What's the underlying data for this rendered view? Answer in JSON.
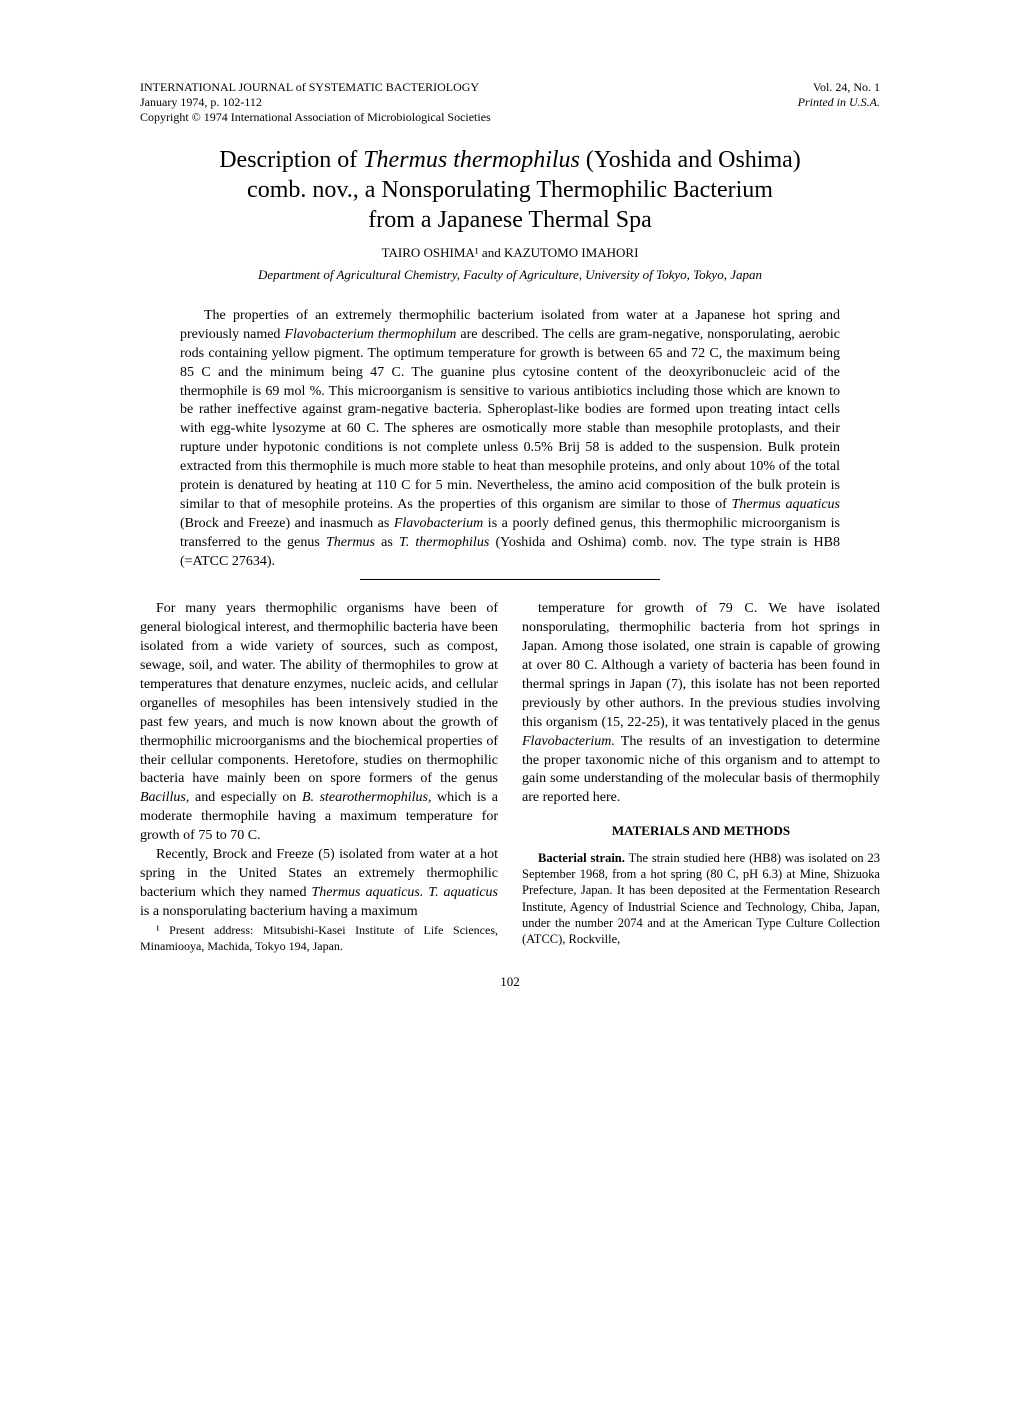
{
  "header": {
    "journal": "INTERNATIONAL JOURNAL of SYSTEMATIC BACTERIOLOGY",
    "issue_line": "January 1974, p. 102-112",
    "copyright": "Copyright © 1974 International Association of Microbiological Societies",
    "volume": "Vol. 24, No. 1",
    "printed_in": "Printed in U.S.A."
  },
  "title": {
    "line1a": "Description of ",
    "line1b": "Thermus thermophilus",
    "line1c": " (Yoshida and Oshima)",
    "line2": "comb. nov., a Nonsporulating Thermophilic Bacterium",
    "line3": "from a Japanese Thermal Spa"
  },
  "authors": "TAIRO OSHIMA¹ and KAZUTOMO IMAHORI",
  "affiliation": "Department of Agricultural Chemistry, Faculty of Agriculture, University of Tokyo, Tokyo, Japan",
  "abstract": {
    "p1a": "The properties of an extremely thermophilic bacterium isolated from water at a Japanese hot spring and previously named ",
    "p1b": "Flavobacterium thermophilum",
    "p1c": " are described. The cells are gram-negative, nonsporulating, aerobic rods containing yellow pigment. The optimum temperature for growth is between 65 and 72 C, the maximum being 85 C and the minimum being 47 C. The guanine plus cytosine content of the deoxyribonucleic acid of the thermophile is 69 mol %. This microorganism is sensitive to various antibiotics including those which are known to be rather ineffective against gram-negative bacteria. Spheroplast-like bodies are formed upon treating intact cells with egg-white lysozyme at 60 C. The spheres are osmotically more stable than mesophile protoplasts, and their rupture under hypotonic conditions is not complete unless 0.5% Brij 58 is added to the suspension. Bulk protein extracted from this thermophile is much more stable to heat than mesophile proteins, and only about 10% of the total protein is denatured by heating at 110 C for 5 min. Nevertheless, the amino acid composition of the bulk protein is similar to that of mesophile proteins. As the properties of this organism are similar to those of ",
    "p1d": "Thermus aquaticus",
    "p1e": " (Brock and Freeze) and inasmuch as ",
    "p1f": "Flavobacterium",
    "p1g": " is a poorly defined genus, this thermophilic microorganism is transferred to the genus ",
    "p1h": "Thermus",
    "p1i": " as ",
    "p1j": "T. thermophilus",
    "p1k": " (Yoshida and Oshima) comb. nov. The type strain is HB8 (=ATCC 27634)."
  },
  "body": {
    "left": {
      "p1a": "For many years thermophilic organisms have been of general biological interest, and thermophilic bacteria have been isolated from a wide variety of sources, such as compost, sewage, soil, and water. The ability of thermophiles to grow at temperatures that denature enzymes, nucleic acids, and cellular organelles of mesophiles has been intensively studied in the past few years, and much is now known about the growth of thermophilic microorganisms and the biochemical properties of their cellular components. Heretofore, studies on thermophilic bacteria have mainly been on spore formers of the genus ",
      "p1b": "Bacillus,",
      "p1c": " and especially on ",
      "p1d": "B. stearothermophilus,",
      "p1e": " which is a moderate thermophile having a maximum temperature for growth of 75 to 70 C.",
      "p2a": "Recently, Brock and Freeze (5) isolated from water at a hot spring in the United States an extremely thermophilic bacterium which they named ",
      "p2b": "Thermus aquaticus. T. aquaticus",
      "p2c": " is a nonsporulating bacterium having a maximum",
      "footnote": "¹ Present address: Mitsubishi-Kasei Institute of Life Sciences, Minamiooya, Machida, Tokyo 194, Japan."
    },
    "right": {
      "p1a": "temperature for growth of 79 C. We have isolated nonsporulating, thermophilic bacteria from hot springs in Japan. Among those isolated, one strain is capable of growing at over 80 C. Although a variety of bacteria has been found in thermal springs in Japan (7), this isolate has not been reported previously by other authors. In the previous studies involving this organism (15, 22-25), it was tentatively placed in the genus ",
      "p1b": "Flavobacterium.",
      "p1c": " The results of an investigation to determine the proper taxonomic niche of this organism and to attempt to gain some understanding of the molecular basis of thermophily are reported here.",
      "section_heading": "MATERIALS AND METHODS",
      "p2_runin": "Bacterial strain.",
      "p2": " The strain studied here (HB8) was isolated on 23 September 1968, from a hot spring (80 C, pH 6.3) at Mine, Shizuoka Prefecture, Japan. It has been deposited at the Fermentation Research Institute, Agency of Industrial Science and Technology, Chiba, Japan, under the number 2074 and at the American Type Culture Collection (ATCC), Rockville,"
    }
  },
  "page_number": "102",
  "styling": {
    "background_color": "#ffffff",
    "text_color": "#000000",
    "body_font_size": 14,
    "title_font_size": 24,
    "header_font_size": 12
  }
}
